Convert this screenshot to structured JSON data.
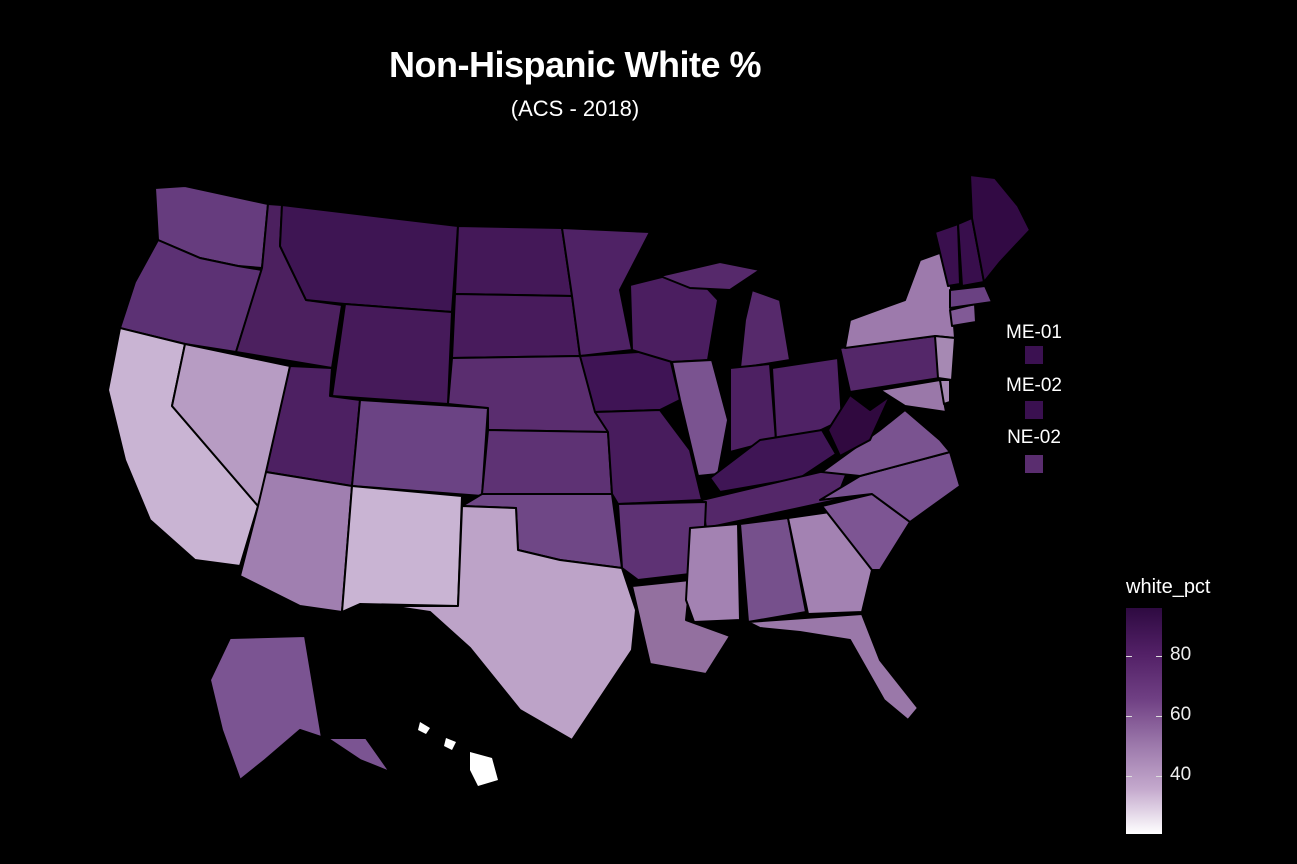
{
  "title": "Non-Hispanic White %",
  "subtitle": "(ACS - 2018)",
  "legend": {
    "title": "white_pct",
    "ticks": [
      {
        "label": "80",
        "value": 80
      },
      {
        "label": "60",
        "value": 60
      },
      {
        "label": "40",
        "value": 40
      }
    ],
    "min": 22,
    "max": 96
  },
  "districts": [
    {
      "label": "ME-01",
      "color": "#3b1151"
    },
    {
      "label": "ME-02",
      "color": "#3a1050"
    },
    {
      "label": "NE-02",
      "color": "#5a2d6f"
    }
  ],
  "colors": {
    "background": "#000000",
    "scale_high": "#2e0a41",
    "scale_low": "#ffffff"
  }
}
